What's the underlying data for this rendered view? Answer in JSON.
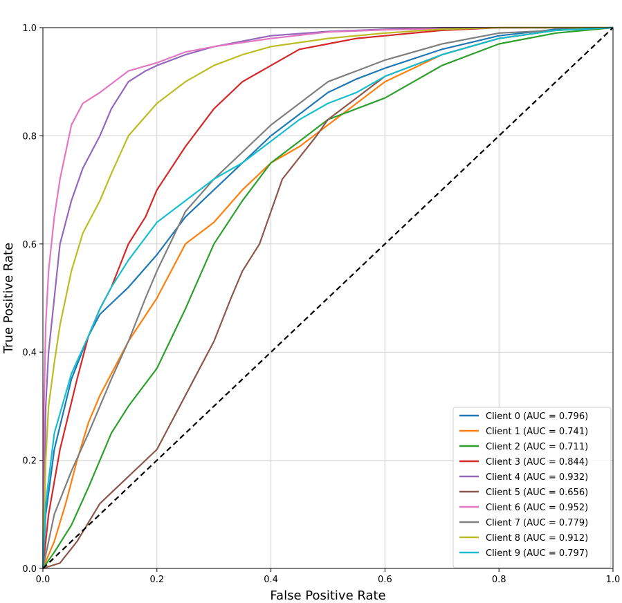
{
  "chart_data": {
    "type": "line",
    "title": "",
    "xlabel": "False Positive Rate",
    "ylabel": "True Positive Rate",
    "xlim": [
      0.0,
      1.0
    ],
    "ylim": [
      0.0,
      1.0
    ],
    "xticks": [
      "0.0",
      "0.2",
      "0.4",
      "0.6",
      "0.8",
      "1.0"
    ],
    "yticks": [
      "0.0",
      "0.2",
      "0.4",
      "0.6",
      "0.8",
      "1.0"
    ],
    "grid": true,
    "legend_position": "lower-right",
    "series": [
      {
        "name": "Client 0 (AUC = 0.796)",
        "color": "#1f77b4",
        "x": [
          0,
          0.005,
          0.02,
          0.05,
          0.08,
          0.1,
          0.15,
          0.2,
          0.25,
          0.3,
          0.35,
          0.4,
          0.45,
          0.5,
          0.55,
          0.6,
          0.7,
          0.8,
          0.9,
          1.0
        ],
        "y": [
          0,
          0.1,
          0.22,
          0.35,
          0.43,
          0.47,
          0.52,
          0.58,
          0.65,
          0.7,
          0.75,
          0.8,
          0.84,
          0.88,
          0.905,
          0.925,
          0.96,
          0.985,
          0.997,
          1.0
        ]
      },
      {
        "name": "Client 1 (AUC = 0.741)",
        "color": "#ff7f0e",
        "x": [
          0,
          0.02,
          0.04,
          0.06,
          0.08,
          0.1,
          0.12,
          0.15,
          0.2,
          0.25,
          0.3,
          0.35,
          0.4,
          0.45,
          0.5,
          0.55,
          0.6,
          0.7,
          0.8,
          0.9,
          1.0
        ],
        "y": [
          0,
          0.05,
          0.12,
          0.2,
          0.27,
          0.32,
          0.36,
          0.42,
          0.5,
          0.6,
          0.64,
          0.7,
          0.75,
          0.78,
          0.82,
          0.86,
          0.9,
          0.95,
          0.98,
          0.995,
          1.0
        ]
      },
      {
        "name": "Client 2 (AUC = 0.711)",
        "color": "#2ca02c",
        "x": [
          0,
          0.02,
          0.05,
          0.08,
          0.1,
          0.12,
          0.15,
          0.2,
          0.25,
          0.3,
          0.35,
          0.4,
          0.45,
          0.5,
          0.55,
          0.6,
          0.65,
          0.7,
          0.8,
          0.9,
          1.0
        ],
        "y": [
          0,
          0.03,
          0.08,
          0.15,
          0.2,
          0.25,
          0.3,
          0.37,
          0.48,
          0.6,
          0.68,
          0.75,
          0.79,
          0.83,
          0.85,
          0.87,
          0.9,
          0.93,
          0.97,
          0.99,
          1.0
        ]
      },
      {
        "name": "Client 3 (AUC = 0.844)",
        "color": "#d62728",
        "x": [
          0,
          0.01,
          0.03,
          0.06,
          0.08,
          0.1,
          0.12,
          0.15,
          0.18,
          0.2,
          0.25,
          0.3,
          0.35,
          0.4,
          0.45,
          0.5,
          0.55,
          0.6,
          0.7,
          0.8,
          1.0
        ],
        "y": [
          0,
          0.1,
          0.22,
          0.35,
          0.43,
          0.48,
          0.52,
          0.6,
          0.65,
          0.7,
          0.78,
          0.85,
          0.9,
          0.93,
          0.96,
          0.97,
          0.98,
          0.985,
          0.995,
          1.0,
          1.0
        ]
      },
      {
        "name": "Client 4 (AUC = 0.932)",
        "color": "#9467bd",
        "x": [
          0,
          0.005,
          0.01,
          0.02,
          0.03,
          0.05,
          0.07,
          0.1,
          0.12,
          0.15,
          0.18,
          0.2,
          0.25,
          0.3,
          0.35,
          0.4,
          0.5,
          0.6,
          0.7,
          1.0
        ],
        "y": [
          0,
          0.3,
          0.4,
          0.5,
          0.6,
          0.68,
          0.74,
          0.8,
          0.85,
          0.9,
          0.92,
          0.93,
          0.95,
          0.965,
          0.975,
          0.985,
          0.993,
          0.997,
          1.0,
          1.0
        ]
      },
      {
        "name": "Client 5 (AUC = 0.656)",
        "color": "#8c564b",
        "x": [
          0,
          0.03,
          0.06,
          0.1,
          0.15,
          0.2,
          0.25,
          0.3,
          0.33,
          0.35,
          0.38,
          0.4,
          0.42,
          0.45,
          0.48,
          0.5,
          0.55,
          0.6,
          0.7,
          0.8,
          0.9,
          1.0
        ],
        "y": [
          0,
          0.01,
          0.05,
          0.12,
          0.17,
          0.22,
          0.32,
          0.42,
          0.5,
          0.55,
          0.6,
          0.66,
          0.72,
          0.76,
          0.8,
          0.83,
          0.87,
          0.91,
          0.95,
          0.98,
          0.995,
          1.0
        ]
      },
      {
        "name": "Client 6 (AUC = 0.952)",
        "color": "#e377c2",
        "x": [
          0,
          0.002,
          0.005,
          0.01,
          0.02,
          0.03,
          0.04,
          0.05,
          0.07,
          0.1,
          0.15,
          0.2,
          0.25,
          0.3,
          0.4,
          0.5,
          0.6,
          0.8,
          1.0
        ],
        "y": [
          0,
          0.3,
          0.45,
          0.55,
          0.65,
          0.72,
          0.77,
          0.82,
          0.86,
          0.88,
          0.92,
          0.935,
          0.955,
          0.965,
          0.98,
          0.992,
          0.996,
          1.0,
          1.0
        ]
      },
      {
        "name": "Client 7 (AUC = 0.779)",
        "color": "#7f7f7f",
        "x": [
          0,
          0.02,
          0.05,
          0.08,
          0.1,
          0.12,
          0.15,
          0.18,
          0.2,
          0.25,
          0.3,
          0.35,
          0.4,
          0.45,
          0.5,
          0.55,
          0.6,
          0.7,
          0.8,
          1.0
        ],
        "y": [
          0,
          0.1,
          0.18,
          0.25,
          0.3,
          0.35,
          0.42,
          0.5,
          0.55,
          0.66,
          0.72,
          0.77,
          0.82,
          0.86,
          0.9,
          0.92,
          0.94,
          0.97,
          0.99,
          1.0
        ]
      },
      {
        "name": "Client 8 (AUC = 0.912)",
        "color": "#bcbd22",
        "x": [
          0,
          0.005,
          0.01,
          0.02,
          0.03,
          0.05,
          0.07,
          0.1,
          0.12,
          0.15,
          0.2,
          0.25,
          0.3,
          0.35,
          0.4,
          0.5,
          0.6,
          0.7,
          0.8,
          1.0
        ],
        "y": [
          0,
          0.2,
          0.3,
          0.38,
          0.45,
          0.55,
          0.62,
          0.68,
          0.73,
          0.8,
          0.86,
          0.9,
          0.93,
          0.95,
          0.965,
          0.98,
          0.99,
          0.997,
          1.0,
          1.0
        ]
      },
      {
        "name": "Client 9 (AUC = 0.797)",
        "color": "#17becf",
        "x": [
          0,
          0.005,
          0.02,
          0.05,
          0.08,
          0.1,
          0.12,
          0.15,
          0.2,
          0.25,
          0.3,
          0.35,
          0.4,
          0.45,
          0.5,
          0.55,
          0.6,
          0.7,
          0.8,
          0.9,
          1.0
        ],
        "y": [
          0,
          0.12,
          0.25,
          0.36,
          0.43,
          0.48,
          0.52,
          0.57,
          0.64,
          0.68,
          0.72,
          0.75,
          0.79,
          0.83,
          0.86,
          0.88,
          0.91,
          0.95,
          0.98,
          0.995,
          1.0
        ]
      },
      {
        "name": "",
        "color": "#000000",
        "dashed": true,
        "x": [
          0,
          1
        ],
        "y": [
          0,
          1
        ]
      }
    ]
  }
}
